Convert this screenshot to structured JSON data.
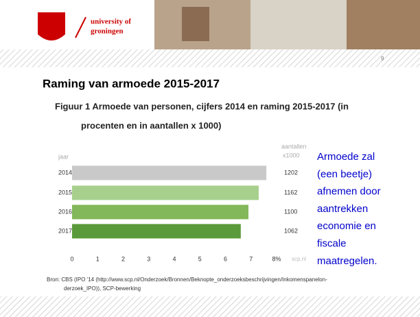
{
  "slide": {
    "logo_line1": "university of",
    "logo_line2": "groningen",
    "page_number": "9",
    "title": "Raming van armoede 2015-2017",
    "note_lines": [
      "Armoede zal",
      "(een beetje)",
      "afnemen door",
      "aantrekken",
      "economie en",
      "fiscale",
      "maatregelen."
    ],
    "source_lines": [
      "Bron: CBS (IPO '14 (http://www.scp.nl/Onderzoek/Bronnen/Beknopte_onderzoeksbeschrijvingen/Inkomenspanelon-",
      "derzoek_IPO)), SCP-bewerking"
    ]
  },
  "chart_data": {
    "type": "hbar",
    "title_lines": [
      "Figuur 1   Armoede van personen, cijfers 2014 en raming 2015-2017 (in",
      "procenten en in aantallen x 1000)"
    ],
    "category_header": "jaar",
    "count_header": [
      "aantallen",
      "x1000"
    ],
    "credit": "scp.nl",
    "categories": [
      "2014",
      "2015",
      "2016",
      "2017"
    ],
    "values": [
      7.6,
      7.3,
      6.9,
      6.6
    ],
    "counts": [
      1202,
      1162,
      1100,
      1062
    ],
    "colors": [
      "#c9c9c9",
      "#a8d08d",
      "#83b85a",
      "#5b9a3a"
    ],
    "xlim": [
      0,
      8
    ],
    "xticks": [
      0,
      1,
      2,
      3,
      4,
      5,
      6,
      7,
      {
        "value": 8,
        "label": "8%"
      }
    ]
  }
}
